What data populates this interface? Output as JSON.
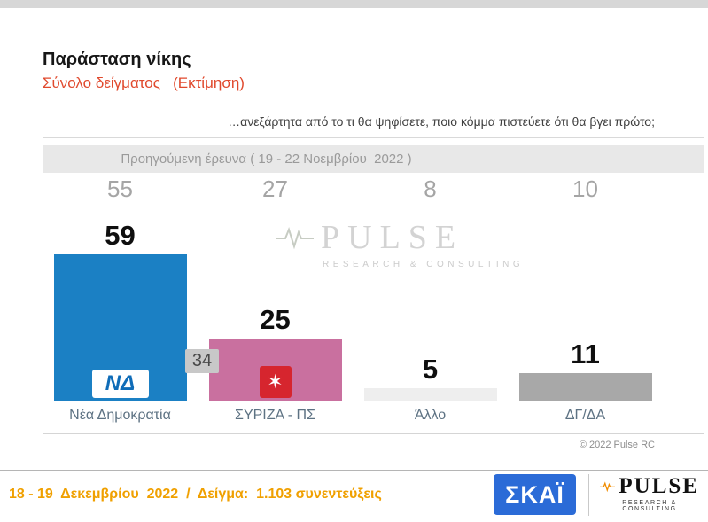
{
  "header": {
    "title": "Παράσταση νίκης",
    "subtitle": "Σύνολο δείγματος   (Εκτίμηση)"
  },
  "question": "…ανεξάρτητα από το τι θα ψηφίσετε, ποιο κόμμα πιστεύετε ότι θα βγει πρώτο;",
  "previous": {
    "label": "Προηγούμενη έρευνα ( 19 - 22 Νοεμβρίου  2022 )"
  },
  "chart_data": {
    "type": "bar",
    "title": "Παράσταση νίκης",
    "subtitle": "Σύνολο δείγματος (Εκτίμηση)",
    "categories": [
      "Νέα Δημοκρατία",
      "ΣΥΡΙΖΑ - ΠΣ",
      "Άλλο",
      "ΔΓ/ΔΑ"
    ],
    "series": [
      {
        "name": "Εκτίμηση ( 18 - 19 Δεκεμβρίου 2022 )",
        "values": [
          59,
          25,
          5,
          11
        ]
      },
      {
        "name": "Προηγούμενη έρευνα ( 19 - 22 Νοεμβρίου 2022 )",
        "values": [
          55,
          27,
          8,
          10
        ]
      }
    ],
    "bar_colors": [
      "#1b80c4",
      "#c9709f",
      "#eeeeee",
      "#a8a8a8"
    ],
    "lead_badge": "34",
    "ylim": [
      0,
      65
    ],
    "grid": false,
    "legend": "none"
  },
  "logos": {
    "nd_text": "ΝΔ",
    "syriza_star": "✶",
    "watermark_text": "PULSE",
    "watermark_sub": "RESEARCH & CONSULTING",
    "skai_text": "ΣΚΑΪ",
    "pulse_text": "PULSE",
    "pulse_sub": "RESEARCH & CONSULTING"
  },
  "copyright": "© 2022 Pulse RC",
  "footer": {
    "text": "18 - 19  Δεκεμβρίου  2022  /  Δείγμα:  1.103 συνεντεύξεις"
  },
  "colors": {
    "accent_red": "#e0492d",
    "footer_orange": "#f0a000",
    "skai_blue": "#2b6bd7"
  }
}
